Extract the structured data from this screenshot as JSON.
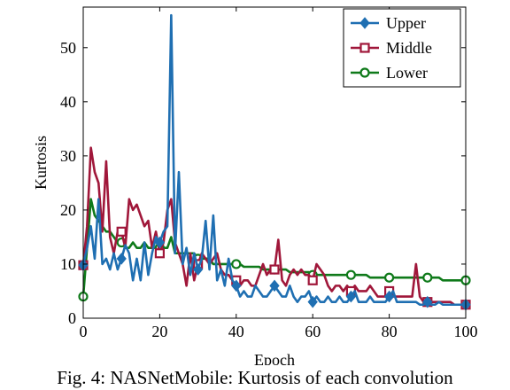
{
  "caption": "Fig. 4: NASNetMobile: Kurtosis of each convolution",
  "chart_data": {
    "type": "line",
    "xlabel": "Epoch",
    "ylabel": "Kurtosis",
    "xlim": [
      0,
      100
    ],
    "ylim": [
      0,
      57.5
    ],
    "xticks": [
      0,
      20,
      40,
      60,
      80,
      100
    ],
    "yticks": [
      0,
      10,
      20,
      30,
      40,
      50
    ],
    "grid": false,
    "legend": "top-right",
    "x": [
      0,
      1,
      2,
      3,
      4,
      5,
      6,
      7,
      8,
      9,
      10,
      11,
      12,
      13,
      14,
      15,
      16,
      17,
      18,
      19,
      20,
      21,
      22,
      23,
      24,
      25,
      26,
      27,
      28,
      29,
      30,
      31,
      32,
      33,
      34,
      35,
      36,
      37,
      38,
      39,
      40,
      41,
      42,
      43,
      44,
      45,
      46,
      47,
      48,
      49,
      50,
      51,
      52,
      53,
      54,
      55,
      56,
      57,
      58,
      59,
      60,
      61,
      62,
      63,
      64,
      65,
      66,
      67,
      68,
      69,
      70,
      71,
      72,
      73,
      74,
      75,
      76,
      77,
      78,
      79,
      80,
      81,
      82,
      83,
      84,
      85,
      86,
      87,
      88,
      89,
      90,
      91,
      92,
      93,
      94,
      95,
      96,
      97,
      98,
      99,
      100
    ],
    "series": [
      {
        "name": "Upper",
        "color": "#1f6fb2",
        "marker": "diamond",
        "marker_every": 10,
        "values": [
          9.8,
          13,
          17,
          11,
          22,
          10,
          11,
          9,
          12,
          9,
          11,
          13.5,
          12,
          7,
          11,
          7,
          14,
          8,
          12,
          15,
          14,
          16,
          17,
          56,
          12,
          27,
          10,
          13,
          8,
          12,
          9,
          11,
          18,
          9,
          19,
          7,
          9,
          6,
          11,
          7,
          6,
          4,
          5,
          4,
          4,
          6,
          5,
          4,
          4,
          5,
          6,
          5,
          4,
          4,
          6,
          4,
          3,
          4,
          4,
          5,
          3,
          4,
          3,
          3,
          4,
          3,
          3,
          4,
          3,
          3,
          4,
          5,
          3,
          3,
          3,
          4,
          3,
          3,
          3,
          3,
          4,
          5,
          3,
          3,
          3,
          3,
          3,
          3,
          2.5,
          2.5,
          3,
          2.5,
          2.5,
          3,
          2.5,
          2.5,
          2.5,
          2.5,
          2.5,
          2.5,
          2.5
        ]
      },
      {
        "name": "Middle",
        "color": "#a0173a",
        "marker": "square",
        "marker_every": 10,
        "values": [
          9.8,
          17,
          31.5,
          27,
          25,
          16,
          29,
          15,
          12,
          16,
          16,
          13,
          22,
          20,
          21,
          19,
          17,
          18,
          13,
          16,
          12,
          14,
          20,
          22,
          14,
          12,
          10,
          6,
          12,
          7,
          10,
          12,
          11,
          10,
          11,
          12,
          9,
          8,
          8,
          7,
          7,
          6,
          7,
          7,
          6,
          6,
          8,
          10,
          8,
          9,
          9,
          14.5,
          7,
          6,
          8,
          9,
          8,
          9,
          8,
          8,
          7,
          10,
          9,
          8,
          6,
          5,
          6,
          6,
          5,
          6,
          5,
          6,
          5,
          5,
          5,
          6,
          5,
          4,
          4,
          4,
          5,
          4,
          4,
          4,
          4,
          4,
          4,
          10,
          4,
          3,
          3,
          3,
          3,
          3,
          3,
          3,
          3,
          2.5,
          2.5,
          2.5,
          2.5
        ]
      },
      {
        "name": "Lower",
        "color": "#0f7a1a",
        "marker": "circle",
        "marker_every": 10,
        "values": [
          4,
          13,
          22,
          19,
          18,
          17,
          16,
          16,
          15,
          14,
          14,
          13,
          13,
          14,
          13,
          13,
          14,
          13,
          13,
          13,
          13,
          13,
          13,
          15,
          12,
          12,
          12,
          12,
          12,
          12,
          11,
          11,
          11,
          11,
          10,
          10,
          10,
          10,
          10,
          10,
          10,
          10,
          9.5,
          9.5,
          9.5,
          9.5,
          9.5,
          9,
          9,
          9,
          9,
          9,
          9,
          9,
          8.5,
          8.5,
          8.5,
          8.5,
          8.5,
          8.5,
          8,
          8,
          8,
          8,
          8,
          8,
          8,
          8,
          8,
          8,
          8,
          8,
          8,
          8,
          8,
          7.5,
          7.5,
          7.5,
          7.5,
          7.5,
          7.5,
          7.5,
          7.5,
          7.5,
          7.5,
          7.5,
          7.5,
          7.5,
          7.5,
          7.5,
          7.5,
          7.5,
          7.5,
          7.5,
          7,
          7,
          7,
          7,
          7,
          7,
          7
        ]
      }
    ]
  }
}
